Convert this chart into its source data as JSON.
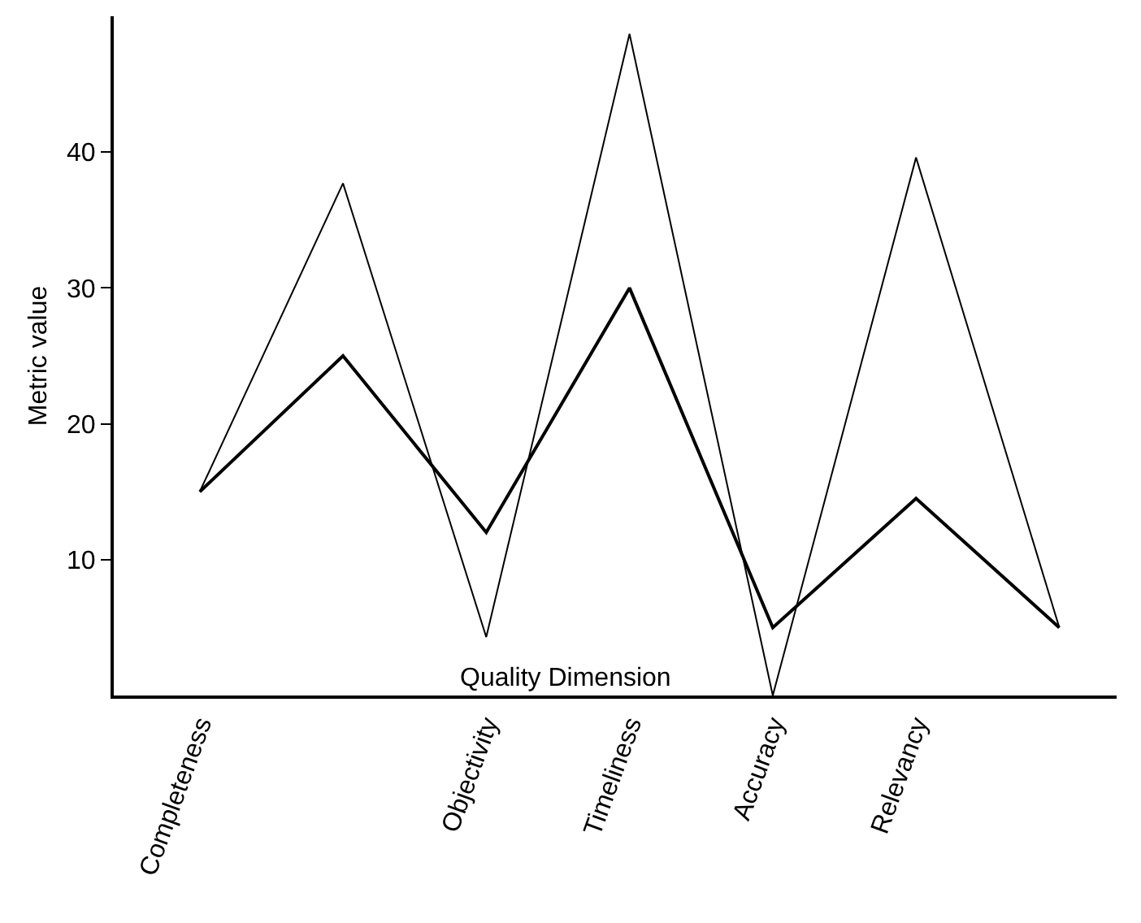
{
  "chart_data": {
    "type": "line",
    "xlabel": "Quality Dimension",
    "ylabel": "Metric value",
    "categories": [
      "Completeness",
      null,
      "Objectivity",
      "Timeliness",
      "Accuracy",
      "Relevancy",
      null
    ],
    "series": [
      {
        "color": "#000000",
        "values": [
          15,
          37.7,
          4.3,
          48.7,
          0,
          39.6,
          5
        ]
      },
      {
        "color": "#000000",
        "values": [
          15,
          25,
          12,
          30,
          5,
          14.5,
          5
        ]
      }
    ],
    "ylim": [
      0,
      50
    ],
    "yticks": [
      10,
      20,
      30,
      40
    ],
    "marker": "none",
    "line_style": "solid"
  }
}
